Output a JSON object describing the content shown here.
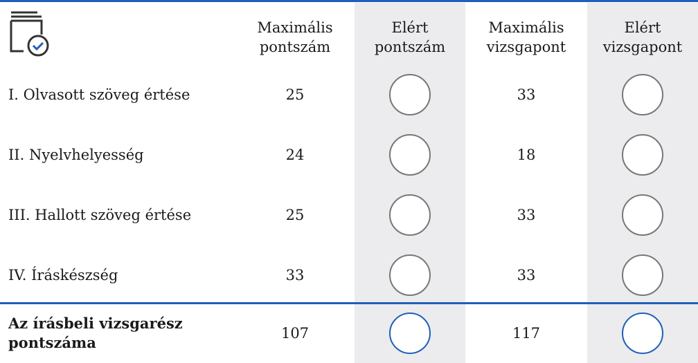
{
  "table": {
    "header": [
      "Maximális pontszám",
      "Elért pontszám",
      "Maximális vizsgapont",
      "Elért vizsgapont"
    ],
    "rows": [
      {
        "label": "I. Olvasott szöveg értése",
        "max_points": "25",
        "max_exam_points": "33"
      },
      {
        "label": "II. Nyelvhelyesség",
        "max_points": "24",
        "max_exam_points": "18"
      },
      {
        "label": "III. Hallott szöveg értése",
        "max_points": "25",
        "max_exam_points": "33"
      },
      {
        "label": "IV. Íráskészség",
        "max_points": "33",
        "max_exam_points": "33"
      }
    ],
    "total": {
      "label": "Az írásbeli vizsgarész pontszáma",
      "max_points": "107",
      "max_exam_points": "117"
    }
  }
}
